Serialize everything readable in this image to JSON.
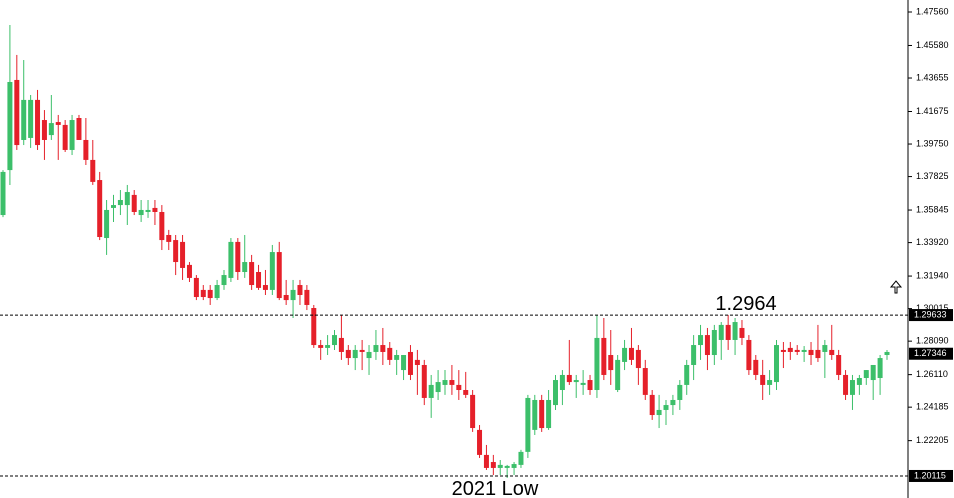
{
  "chart_data": {
    "type": "candlestick",
    "up_color": "#3cbf6a",
    "down_color": "#e5202a",
    "ylim": [
      1.1964,
      1.4827
    ],
    "yticks": [
      {
        "value": 1.4756,
        "label": "1.47560"
      },
      {
        "value": 1.4558,
        "label": "1.45580"
      },
      {
        "value": 1.43655,
        "label": "1.43655"
      },
      {
        "value": 1.41675,
        "label": "1.41675"
      },
      {
        "value": 1.3975,
        "label": "1.39750"
      },
      {
        "value": 1.37825,
        "label": "1.37825"
      },
      {
        "value": 1.35845,
        "label": "1.35845"
      },
      {
        "value": 1.3392,
        "label": "1.33920"
      },
      {
        "value": 1.3194,
        "label": "1.31940"
      },
      {
        "value": 1.30015,
        "label": "1.30015"
      },
      {
        "value": 1.2809,
        "label": "1.28090"
      },
      {
        "value": 1.2611,
        "label": "1.26110"
      },
      {
        "value": 1.24185,
        "label": "1.24185"
      },
      {
        "value": 1.22205,
        "label": "1.22205"
      }
    ],
    "price_labels": [
      {
        "value": 1.29633,
        "label": "1.29633",
        "line": "dashed"
      },
      {
        "value": 1.27346,
        "label": "1.27346"
      },
      {
        "value": 1.20115,
        "label": "1.20115",
        "line": "dashed"
      }
    ],
    "annotations": [
      "1.2964",
      "2021 Low"
    ],
    "open": [
      1.3555,
      1.3821,
      1.4354,
      1.3999,
      1.4011,
      1.4236,
      1.4117,
      1.4028,
      1.4105,
      1.4088,
      1.394,
      1.4129,
      1.3999,
      1.3881,
      1.3762,
      1.3419,
      1.3597,
      1.3614,
      1.3614,
      1.3674,
      1.3555,
      1.3573,
      1.3597,
      1.3573,
      1.3437,
      1.3407,
      1.3396,
      1.326,
      1.3183,
      1.3112,
      1.3112,
      1.3064,
      1.3141,
      1.3183,
      1.3396,
      1.3218,
      1.3277,
      1.3218,
      1.3141,
      1.3112,
      1.3336,
      1.3082,
      1.3052,
      1.3141,
      1.3112,
      1.3005,
      1.2786,
      1.2769,
      1.2786,
      1.2828,
      1.2757,
      1.2709,
      1.2757,
      1.2709,
      1.2745,
      1.2786,
      1.2769,
      1.2698,
      1.2638,
      1.2745,
      1.2698,
      1.2668,
      1.2473,
      1.2508,
      1.255,
      1.2579,
      1.255,
      1.252,
      1.2491,
      1.2284,
      1.2136,
      1.2094,
      1.2059,
      1.2059,
      1.2059,
      1.2077,
      1.2154,
      1.2284,
      1.2461,
      1.2295,
      1.2431,
      1.252,
      1.2609,
      1.2567,
      1.255,
      1.2579,
      1.252,
      1.2828,
      1.2727,
      1.252,
      1.2686,
      1.2769,
      1.2757,
      1.265,
      1.2491,
      1.2372,
      1.2402,
      1.2431,
      1.2461,
      1.255,
      1.2668,
      1.2786,
      1.2845,
      1.2727,
      1.2816,
      1.2905,
      1.2816,
      1.2887,
      1.2816,
      1.2698,
      1.2609,
      1.255,
      1.2567,
      1.2757,
      1.2769,
      1.2757,
      1.2745,
      1.2757,
      1.2757,
      1.2745,
      1.2757,
      1.2727,
      1.2609,
      1.2491,
      1.255,
      1.2591,
      1.2579,
      1.2591,
      1.2727
    ],
    "high": [
      1.3821,
      1.4679,
      1.4502,
      1.4472,
      1.4265,
      1.4295,
      1.4176,
      1.4265,
      1.4147,
      1.4117,
      1.4147,
      1.4147,
      1.4129,
      1.3999,
      1.381,
      1.3644,
      1.3674,
      1.3703,
      1.3733,
      1.3703,
      1.3644,
      1.3644,
      1.3644,
      1.3614,
      1.3467,
      1.3437,
      1.3437,
      1.3277,
      1.32,
      1.3141,
      1.3141,
      1.3171,
      1.323,
      1.3419,
      1.3419,
      1.3437,
      1.3319,
      1.326,
      1.323,
      1.3378,
      1.3396,
      1.3171,
      1.3171,
      1.3171,
      1.3141,
      1.3023,
      1.2816,
      1.2845,
      1.2875,
      1.2964,
      1.2786,
      1.2786,
      1.2816,
      1.2786,
      1.2875,
      1.2887,
      1.2804,
      1.2757,
      1.2727,
      1.2786,
      1.2757,
      1.2698,
      1.2609,
      1.2638,
      1.2638,
      1.2668,
      1.2638,
      1.2627,
      1.252,
      1.2313,
      1.2195,
      1.2136,
      1.2106,
      1.2077,
      1.2094,
      1.2166,
      1.2491,
      1.2491,
      1.2491,
      1.252,
      1.2609,
      1.2638,
      1.2816,
      1.2609,
      1.2638,
      1.2609,
      1.2964,
      1.2946,
      1.2875,
      1.2727,
      1.2816,
      1.2887,
      1.2786,
      1.2698,
      1.252,
      1.2491,
      1.2461,
      1.2491,
      1.2579,
      1.2698,
      1.2845,
      1.2905,
      1.2887,
      1.2905,
      1.2922,
      1.2964,
      1.2946,
      1.2934,
      1.2845,
      1.2727,
      1.2698,
      1.2638,
      1.2816,
      1.2804,
      1.2804,
      1.2786,
      1.278,
      1.2804,
      1.2905,
      1.2816,
      1.2905,
      1.2757,
      1.2638,
      1.2609,
      1.2609,
      1.2638,
      1.2668,
      1.2727,
      1.2757
    ],
    "low": [
      1.3543,
      1.3733,
      1.394,
      1.3969,
      1.3952,
      1.394,
      1.3881,
      1.3999,
      1.3881,
      1.3928,
      1.391,
      1.3999,
      1.3851,
      1.3733,
      1.3407,
      1.3319,
      1.3514,
      1.3555,
      1.3496,
      1.3555,
      1.3514,
      1.3538,
      1.3496,
      1.3348,
      1.3348,
      1.32,
      1.3171,
      1.3159,
      1.3052,
      1.3052,
      1.3023,
      1.3052,
      1.3112,
      1.3159,
      1.3171,
      1.3183,
      1.3112,
      1.3112,
      1.3082,
      1.3082,
      1.3052,
      1.3023,
      1.2946,
      1.3023,
      1.2993,
      1.2769,
      1.2698,
      1.2727,
      1.2757,
      1.2698,
      1.2668,
      1.2638,
      1.2638,
      1.2609,
      1.2698,
      1.2668,
      1.2668,
      1.2609,
      1.2579,
      1.2579,
      1.2491,
      1.2431,
      1.2355,
      1.2461,
      1.2491,
      1.2491,
      1.2461,
      1.2473,
      1.2272,
      1.2118,
      1.2047,
      1.2017,
      1.2017,
      1.2,
      1.2017,
      1.2059,
      1.2118,
      1.2254,
      1.2272,
      1.2284,
      1.2402,
      1.2431,
      1.255,
      1.2473,
      1.2491,
      1.2491,
      1.2473,
      1.2579,
      1.255,
      1.2508,
      1.2638,
      1.2668,
      1.255,
      1.2461,
      1.2343,
      1.2295,
      1.2313,
      1.2372,
      1.2402,
      1.2491,
      1.2579,
      1.2698,
      1.2638,
      1.2668,
      1.2698,
      1.2757,
      1.2727,
      1.2786,
      1.2609,
      1.2579,
      1.2461,
      1.2491,
      1.252,
      1.265,
      1.2698,
      1.2727,
      1.2686,
      1.2668,
      1.2686,
      1.2591,
      1.2698,
      1.2579,
      1.2461,
      1.2402,
      1.2491,
      1.255,
      1.2461,
      1.2491,
      1.2698
    ],
    "close": [
      1.381,
      1.4342,
      1.3969,
      1.4236,
      1.4236,
      1.3969,
      1.3999,
      1.4099,
      1.4088,
      1.394,
      1.4117,
      1.3999,
      1.3881,
      1.3751,
      1.3425,
      1.3585,
      1.3614,
      1.3644,
      1.3691,
      1.3573,
      1.3585,
      1.3585,
      1.3573,
      1.3407,
      1.3396,
      1.3277,
      1.3242,
      1.3183,
      1.307,
      1.307,
      1.3064,
      1.3141,
      1.32,
      1.3396,
      1.3218,
      1.3277,
      1.3141,
      1.3124,
      1.3112,
      1.3336,
      1.3064,
      1.3052,
      1.3112,
      1.3082,
      1.3023,
      1.2786,
      1.2769,
      1.2786,
      1.2845,
      1.2745,
      1.2709,
      1.2757,
      1.2745,
      1.2745,
      1.2786,
      1.2745,
      1.2698,
      1.2727,
      1.2727,
      1.2609,
      1.2668,
      1.2473,
      1.255,
      1.2567,
      1.2579,
      1.255,
      1.252,
      1.2491,
      1.2295,
      1.2136,
      1.2059,
      1.2059,
      1.2077,
      1.2071,
      1.2082,
      1.2154,
      1.2473,
      1.2461,
      1.2295,
      1.2461,
      1.2579,
      1.2609,
      1.2567,
      1.2579,
      1.2562,
      1.252,
      1.2828,
      1.2609,
      1.2638,
      1.2698,
      1.2769,
      1.2698,
      1.265,
      1.2491,
      1.2372,
      1.2402,
      1.2431,
      1.2461,
      1.255,
      1.2668,
      1.2786,
      1.2845,
      1.2727,
      1.2875,
      1.2905,
      1.2816,
      1.2922,
      1.2828,
      1.2638,
      1.2609,
      1.255,
      1.2579,
      1.2786,
      1.2745,
      1.2745,
      1.2745,
      1.2757,
      1.2727,
      1.2709,
      1.2786,
      1.2727,
      1.2609,
      1.2491,
      1.2579,
      1.2591,
      1.2638,
      1.2668,
      1.2709,
      1.2745
    ]
  }
}
